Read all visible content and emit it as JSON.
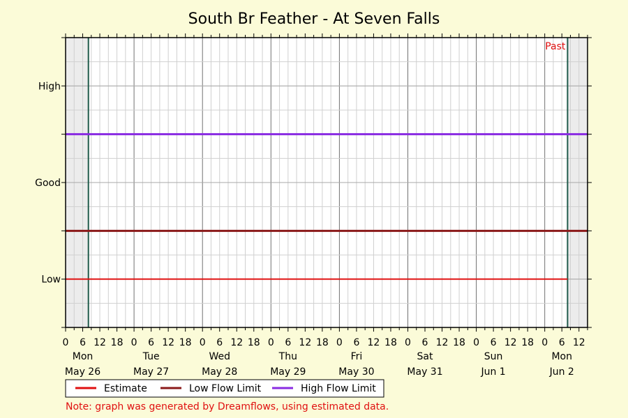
{
  "chart_data": {
    "type": "line",
    "title": "South Br Feather - At Seven Falls",
    "xlabel": "",
    "ylabel": "",
    "y_categories": [
      "Low",
      "Good",
      "High"
    ],
    "x_hour_ticks": [
      "0",
      "6",
      "12",
      "18",
      "0",
      "6",
      "12",
      "18",
      "0",
      "6",
      "12",
      "18",
      "0",
      "6",
      "12",
      "18",
      "0",
      "6",
      "12",
      "18",
      "0",
      "6",
      "12",
      "18",
      "0",
      "6",
      "12",
      "18",
      "0",
      "6",
      "12"
    ],
    "days": [
      {
        "weekday": "Mon",
        "date": "May 26"
      },
      {
        "weekday": "Tue",
        "date": "May 27"
      },
      {
        "weekday": "Wed",
        "date": "May 28"
      },
      {
        "weekday": "Thu",
        "date": "May 29"
      },
      {
        "weekday": "Fri",
        "date": "May 30"
      },
      {
        "weekday": "Sat",
        "date": "May 31"
      },
      {
        "weekday": "Sun",
        "date": "Jun 1"
      },
      {
        "weekday": "Mon",
        "date": "Jun 2"
      }
    ],
    "x_range_hours": [
      0,
      183
    ],
    "y_range": [
      0.5,
      3.5
    ],
    "series": [
      {
        "name": "Estimate",
        "color": "#e01010",
        "x_hours": [
          0,
          176
        ],
        "values": [
          1,
          1
        ]
      },
      {
        "name": "Low Flow Limit",
        "color": "#8b1a1a",
        "x_hours": [
          0,
          183
        ],
        "values": [
          1.5,
          1.5
        ]
      },
      {
        "name": "High Flow Limit",
        "color": "#8a2be2",
        "x_hours": [
          0,
          183
        ],
        "values": [
          2.5,
          2.5
        ]
      }
    ],
    "shaded_ranges_hours": [
      [
        0,
        8
      ],
      [
        176,
        183
      ]
    ],
    "past_marker_label": "Past",
    "past_marker_color": "#e01010",
    "grid": true,
    "legend_position": "bottom-left"
  },
  "note": "Note: graph was generated by Dreamflows, using estimated data."
}
